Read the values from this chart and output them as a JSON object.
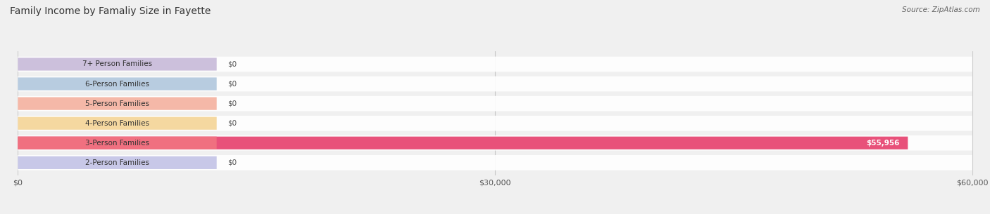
{
  "title": "Family Income by Famaliy Size in Fayette",
  "source": "Source: ZipAtlas.com",
  "categories": [
    "2-Person Families",
    "3-Person Families",
    "4-Person Families",
    "5-Person Families",
    "6-Person Families",
    "7+ Person Families"
  ],
  "values": [
    0,
    55956,
    0,
    0,
    0,
    0
  ],
  "bar_colors": [
    "#9999cc",
    "#e8517a",
    "#f5c98a",
    "#f09080",
    "#aabbdd",
    "#c0aed0"
  ],
  "label_bg_colors": [
    "#c8c8e8",
    "#f07080",
    "#f5d8a0",
    "#f5b8a8",
    "#b8cce0",
    "#ccc0dc"
  ],
  "xmax": 60000,
  "xticks": [
    0,
    30000,
    60000
  ],
  "xtick_labels": [
    "$0",
    "$30,000",
    "$60,000"
  ],
  "value_labels": [
    "$0",
    "$55,956",
    "$0",
    "$0",
    "$0",
    "$0"
  ],
  "bar_height": 0.65,
  "background_color": "#f0f0f0",
  "title_fontsize": 10,
  "source_fontsize": 7.5,
  "label_fontsize": 7.5,
  "value_fontsize": 7.5
}
